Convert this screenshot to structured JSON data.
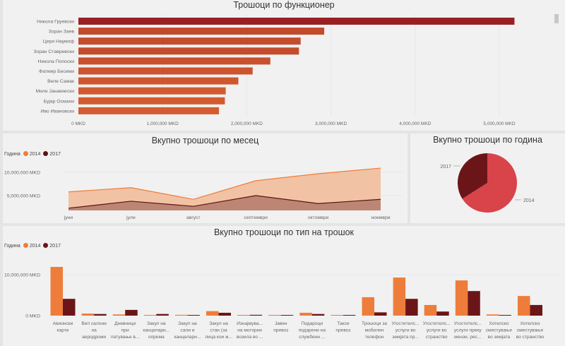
{
  "chart_data": [
    {
      "type": "bar",
      "orientation": "horizontal",
      "title": "Трошоци по функционер",
      "categories": [
        "Никола Груевски",
        "Зоран Заев",
        "Цери Наумоф",
        "Зоран Ставревски",
        "Никола Попоски",
        "Фатмир Бесими",
        "Веле Самак",
        "Миле Јанакиески",
        "Бујар Османи",
        "Иво Ивановски"
      ],
      "values": [
        5180000,
        2920000,
        2640000,
        2620000,
        2280000,
        2070000,
        1900000,
        1750000,
        1740000,
        1670000
      ],
      "xlabel": "",
      "ylabel": "",
      "xlim": [
        0,
        5500000
      ],
      "x_ticks": [
        0,
        1000000,
        2000000,
        3000000,
        4000000,
        5000000
      ],
      "x_tick_labels": [
        "0 MKD",
        "1,000,000 MKD",
        "2,000,000 MKD",
        "3,000,000 MKD",
        "4,000,000 MKD",
        "5,000,000 MKD"
      ],
      "highlight_color": "#9a2123",
      "colors": [
        "#9a2123",
        "#c24a2b",
        "#c44c2c",
        "#c44c2c",
        "#c9512d",
        "#cc542e",
        "#cf572f",
        "#d15a30",
        "#d25b30",
        "#d45c31"
      ],
      "grid": true
    },
    {
      "type": "area",
      "title": "Вкупно трошоци по месец",
      "legend_title": "Година",
      "legend_position": "top-left",
      "categories": [
        "јуни",
        "јули",
        "август",
        "септември",
        "октомври",
        "ноември"
      ],
      "series": [
        {
          "name": "2014",
          "values": [
            5800000,
            6700000,
            4200000,
            8200000,
            9700000,
            10900000
          ],
          "color": "#ee7d3b",
          "fill": "#f2c2a4"
        },
        {
          "name": "2017",
          "values": [
            2300000,
            3800000,
            2700000,
            5000000,
            3300000,
            4200000
          ],
          "color": "#5c1414",
          "fill": "#b47b6c"
        }
      ],
      "ylim": [
        2000000,
        12500000
      ],
      "y_ticks": [
        5000000,
        10000000
      ],
      "y_tick_labels": [
        "5,000,000 MKD",
        "10,000,000 MKD"
      ],
      "grid": true
    },
    {
      "type": "pie",
      "title": "Вкупно трошоци по година",
      "labels": [
        "2014",
        "2017"
      ],
      "values": [
        66,
        34
      ],
      "colors": [
        "#d9434a",
        "#6b1518"
      ]
    },
    {
      "type": "bar",
      "title": "Вкупно трошоци по тип на трошок",
      "legend_title": "Година",
      "legend_position": "top-left",
      "categories": [
        [
          "Авионски",
          "карти"
        ],
        [
          "Вип салони",
          "на",
          "аеродроми"
        ],
        [
          "Дневници",
          "при",
          "патување в..."
        ],
        [
          "Закуп на",
          "канцелари...",
          "опрема"
        ],
        [
          "Закуп на",
          "сали и",
          "канцелари..."
        ],
        [
          "Закуп на",
          "стан (за",
          "лица кои ж..."
        ],
        [
          "Изнајмува...",
          "на моторни",
          "возила во ..."
        ],
        [
          "Јавен",
          "превоз"
        ],
        [
          "Подароци",
          "подарени на",
          "службени ..."
        ],
        [
          "Такси",
          "превоз"
        ],
        [
          "Трошоци за",
          "мобилен",
          "телефон"
        ],
        [
          "Угостителс...",
          "услуги во",
          "земјата пр..."
        ],
        [
          "Угостителс...",
          "услуги во",
          "странство"
        ],
        [
          "Угостителс...",
          "услуги преку",
          "мензи, рес..."
        ],
        [
          "Хотелско",
          "сместување",
          "во земјата"
        ],
        [
          "Хотелско",
          "сместување",
          "во странство"
        ]
      ],
      "series": [
        {
          "name": "2014",
          "values": [
            11900000,
            500000,
            300000,
            100000,
            200000,
            1100000,
            100000,
            100000,
            700000,
            100000,
            4500000,
            9300000,
            2600000,
            8600000,
            300000,
            4800000
          ],
          "color": "#ee7d3b"
        },
        {
          "name": "2017",
          "values": [
            4100000,
            400000,
            1400000,
            400000,
            100000,
            700000,
            200000,
            100000,
            400000,
            100000,
            800000,
            4100000,
            1000000,
            6000000,
            100000,
            2600000
          ],
          "color": "#6b1518"
        }
      ],
      "ylim": [
        0,
        13000000
      ],
      "y_ticks": [
        0,
        10000000
      ],
      "y_tick_labels": [
        "0 MKD",
        "10,000,000 MKD"
      ],
      "grid": true
    }
  ]
}
